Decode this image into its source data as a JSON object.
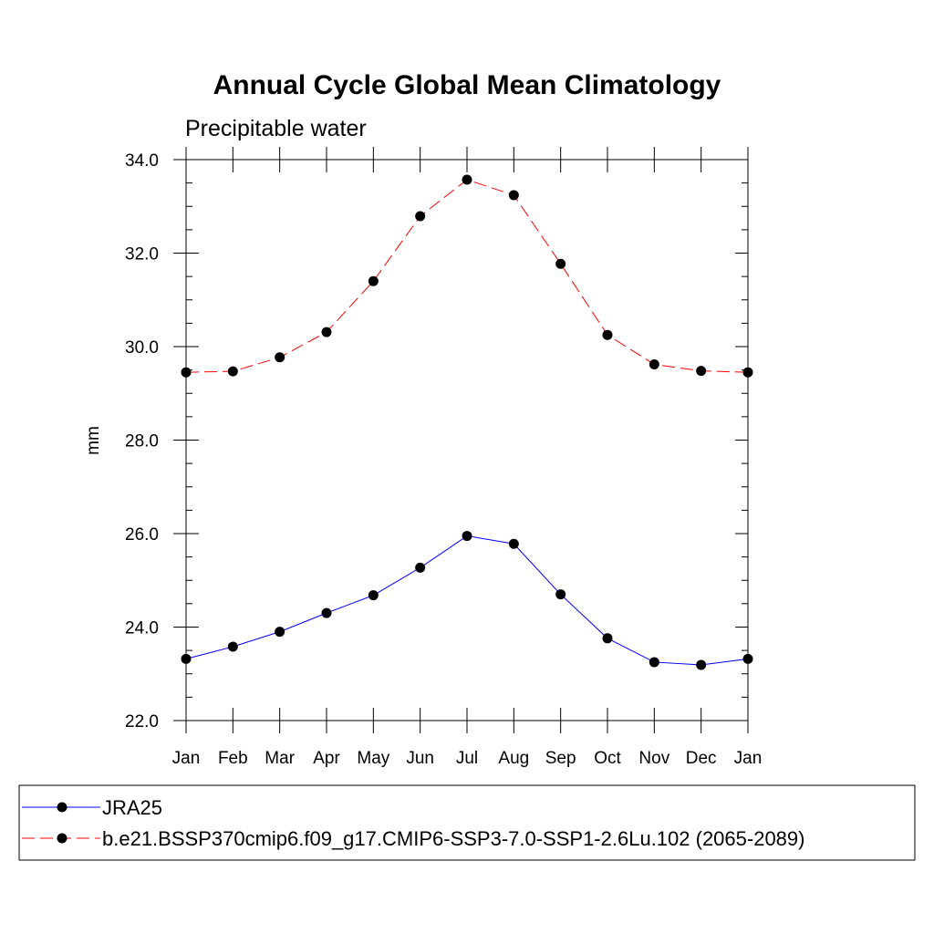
{
  "chart_data": {
    "type": "line",
    "title": "Annual Cycle Global Mean Climatology",
    "subtitle": "Precipitable water",
    "xlabel": "",
    "ylabel": "mm",
    "categories": [
      "Jan",
      "Feb",
      "Mar",
      "Apr",
      "May",
      "Jun",
      "Jul",
      "Aug",
      "Sep",
      "Oct",
      "Nov",
      "Dec",
      "Jan"
    ],
    "ylim": [
      22.0,
      34.0
    ],
    "yticks": [
      "22.0",
      "24.0",
      "26.0",
      "28.0",
      "30.0",
      "32.0",
      "34.0"
    ],
    "grid": false,
    "legend_position": "bottom",
    "series": [
      {
        "name": "JRA25",
        "color": "#0000ff",
        "dash": "solid",
        "marker": "filled-circle",
        "values": [
          23.32,
          23.58,
          23.9,
          24.3,
          24.68,
          25.27,
          25.95,
          25.78,
          24.7,
          23.76,
          23.25,
          23.19,
          23.32
        ]
      },
      {
        "name": "b.e21.BSSP370cmip6.f09_g17.CMIP6-SSP3-7.0-SSP1-2.6Lu.102 (2065-2089)",
        "color": "#ff0000",
        "dash": "dashed",
        "marker": "filled-circle",
        "values": [
          29.45,
          29.47,
          29.77,
          30.31,
          31.4,
          32.79,
          33.57,
          33.24,
          31.77,
          30.25,
          29.62,
          29.48,
          29.45
        ]
      }
    ]
  }
}
